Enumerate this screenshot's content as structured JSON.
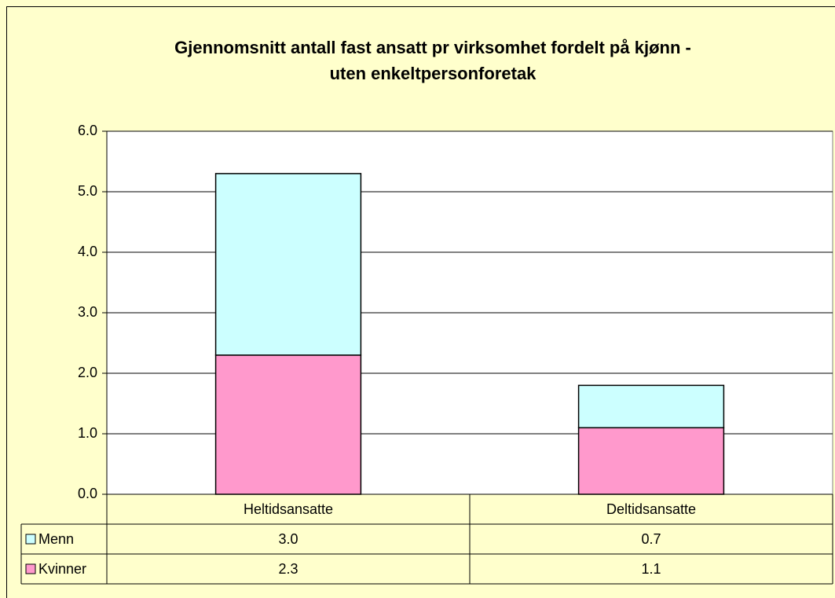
{
  "chart_data": {
    "type": "stacked_bar",
    "title": [
      "Gjennomsnitt antall fast ansatt pr virksomhet fordelt på kjønn -",
      "uten enkeltpersonforetak"
    ],
    "categories": [
      "Heltidsansatte",
      "Deltidsansatte"
    ],
    "series": [
      {
        "name": "Kvinner",
        "color": "#ff99cc",
        "values": [
          2.3,
          1.1
        ],
        "value_labels": [
          "2.3",
          "1.1"
        ]
      },
      {
        "name": "Menn",
        "color": "#ccffff",
        "values": [
          3,
          0.7
        ],
        "value_labels": [
          "3.0",
          "0.7"
        ]
      }
    ],
    "ylim": [
      0,
      6
    ],
    "yticks": [
      {
        "value": 0,
        "label": "0.0"
      },
      {
        "value": 1,
        "label": "1.0"
      },
      {
        "value": 2,
        "label": "2.0"
      },
      {
        "value": 3,
        "label": "3.0"
      },
      {
        "value": 4,
        "label": "4.0"
      },
      {
        "value": 5,
        "label": "5.0"
      },
      {
        "value": 6,
        "label": "6.0"
      }
    ],
    "grid": true
  }
}
